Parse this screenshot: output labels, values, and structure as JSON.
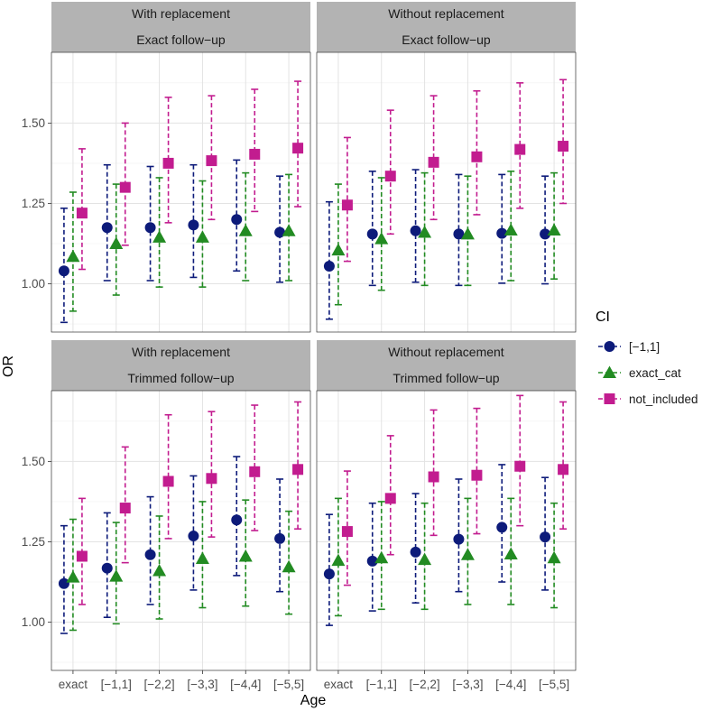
{
  "chart_data": {
    "type": "errorbar-point",
    "xlabel": "Age",
    "ylabel": "OR",
    "categories": [
      "exact",
      "[−1,1]",
      "[−2,2]",
      "[−3,3]",
      "[−4,4]",
      "[−5,5]"
    ],
    "y_ticks": [
      1.0,
      1.25,
      1.5
    ],
    "y_tick_labels": [
      "1.00",
      "1.25",
      "1.50"
    ],
    "ylim": [
      0.85,
      1.72
    ],
    "legend": {
      "title": "CI",
      "entries": [
        {
          "key": "[-1,1]",
          "label": "[−1,1]",
          "color": "#0d1b7a",
          "shape": "circle"
        },
        {
          "key": "exact_cat",
          "label": "exact_cat",
          "color": "#228b22",
          "shape": "triangle"
        },
        {
          "key": "not_included",
          "label": "not_included",
          "color": "#c21c8f",
          "shape": "square"
        }
      ]
    },
    "panels": [
      {
        "strip_top": "With replacement",
        "strip_bottom": "Exact follow−up",
        "series": [
          {
            "key": "[-1,1]",
            "values": [
              1.04,
              1.175,
              1.175,
              1.183,
              1.2,
              1.16
            ],
            "lower": [
              0.88,
              1.01,
              1.01,
              1.02,
              1.04,
              1.005
            ],
            "upper": [
              1.235,
              1.37,
              1.365,
              1.37,
              1.385,
              1.335
            ]
          },
          {
            "key": "exact_cat",
            "values": [
              1.085,
              1.125,
              1.145,
              1.145,
              1.165,
              1.165
            ],
            "lower": [
              0.915,
              0.965,
              0.99,
              0.99,
              1.01,
              1.01
            ],
            "upper": [
              1.285,
              1.31,
              1.33,
              1.32,
              1.345,
              1.34
            ]
          },
          {
            "key": "not_included",
            "values": [
              1.22,
              1.3,
              1.375,
              1.383,
              1.403,
              1.422
            ],
            "lower": [
              1.045,
              1.12,
              1.19,
              1.2,
              1.225,
              1.24
            ],
            "upper": [
              1.42,
              1.5,
              1.58,
              1.585,
              1.605,
              1.63
            ]
          }
        ]
      },
      {
        "strip_top": "Without replacement",
        "strip_bottom": "Exact follow−up",
        "series": [
          {
            "key": "[-1,1]",
            "values": [
              1.055,
              1.155,
              1.165,
              1.155,
              1.157,
              1.155
            ],
            "lower": [
              0.89,
              0.995,
              1.005,
              0.995,
              1.002,
              1.0
            ],
            "upper": [
              1.255,
              1.35,
              1.355,
              1.34,
              1.34,
              1.335
            ]
          },
          {
            "key": "exact_cat",
            "values": [
              1.105,
              1.14,
              1.16,
              1.155,
              1.167,
              1.167
            ],
            "lower": [
              0.935,
              0.98,
              0.995,
              0.995,
              1.01,
              1.015
            ],
            "upper": [
              1.31,
              1.33,
              1.345,
              1.335,
              1.35,
              1.345
            ]
          },
          {
            "key": "not_included",
            "values": [
              1.245,
              1.335,
              1.378,
              1.395,
              1.418,
              1.428
            ],
            "lower": [
              1.07,
              1.155,
              1.2,
              1.215,
              1.235,
              1.25
            ],
            "upper": [
              1.455,
              1.54,
              1.585,
              1.6,
              1.625,
              1.635
            ]
          }
        ]
      },
      {
        "strip_top": "With replacement",
        "strip_bottom": "Trimmed follow−up",
        "series": [
          {
            "key": "[-1,1]",
            "values": [
              1.12,
              1.168,
              1.21,
              1.268,
              1.318,
              1.26
            ],
            "lower": [
              0.965,
              1.015,
              1.055,
              1.1,
              1.145,
              1.095
            ],
            "upper": [
              1.3,
              1.34,
              1.39,
              1.455,
              1.515,
              1.445
            ]
          },
          {
            "key": "exact_cat",
            "values": [
              1.14,
              1.143,
              1.16,
              1.198,
              1.205,
              1.172
            ],
            "lower": [
              0.975,
              0.995,
              1.01,
              1.045,
              1.05,
              1.025
            ],
            "upper": [
              1.32,
              1.31,
              1.33,
              1.375,
              1.38,
              1.345
            ]
          },
          {
            "key": "not_included",
            "values": [
              1.205,
              1.355,
              1.438,
              1.447,
              1.468,
              1.475
            ],
            "lower": [
              1.055,
              1.185,
              1.26,
              1.265,
              1.285,
              1.29
            ],
            "upper": [
              1.385,
              1.545,
              1.645,
              1.655,
              1.675,
              1.685
            ]
          }
        ]
      },
      {
        "strip_top": "Without replacement",
        "strip_bottom": "Trimmed follow−up",
        "series": [
          {
            "key": "[-1,1]",
            "values": [
              1.15,
              1.19,
              1.218,
              1.258,
              1.295,
              1.265
            ],
            "lower": [
              0.99,
              1.035,
              1.06,
              1.095,
              1.125,
              1.1
            ],
            "upper": [
              1.335,
              1.37,
              1.4,
              1.445,
              1.49,
              1.45
            ]
          },
          {
            "key": "exact_cat",
            "values": [
              1.192,
              1.2,
              1.195,
              1.21,
              1.212,
              1.2
            ],
            "lower": [
              1.02,
              1.04,
              1.04,
              1.055,
              1.055,
              1.045
            ],
            "upper": [
              1.385,
              1.375,
              1.37,
              1.385,
              1.385,
              1.37
            ]
          },
          {
            "key": "not_included",
            "values": [
              1.282,
              1.385,
              1.452,
              1.457,
              1.485,
              1.475
            ],
            "lower": [
              1.115,
              1.21,
              1.27,
              1.275,
              1.3,
              1.29
            ],
            "upper": [
              1.47,
              1.58,
              1.66,
              1.665,
              1.705,
              1.685
            ]
          }
        ]
      }
    ]
  }
}
